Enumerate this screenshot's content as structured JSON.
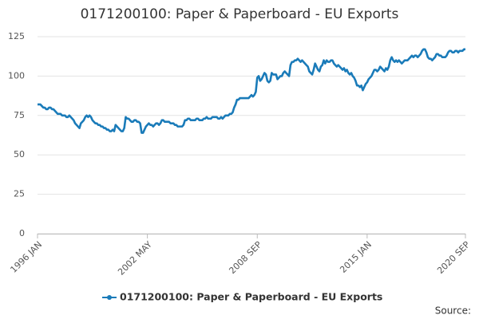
{
  "chart_data": {
    "type": "line",
    "title": "0171200100: Paper & Paperboard - EU Exports",
    "note": "Source:",
    "ylim": [
      0,
      125
    ],
    "yticks": [
      0,
      25,
      50,
      75,
      100,
      125
    ],
    "grid": true,
    "categories": [
      "1996 JAN",
      null,
      null,
      null,
      null,
      null,
      null,
      null,
      null,
      null,
      null,
      null,
      null,
      null,
      null,
      null,
      null,
      null,
      null,
      null,
      null,
      null,
      null,
      null,
      null,
      null,
      null,
      null,
      null,
      null,
      null,
      null,
      null,
      null,
      null,
      null,
      null,
      null,
      null,
      null,
      null,
      null,
      null,
      null,
      null,
      null,
      null,
      null,
      null,
      null,
      null,
      null,
      null,
      null,
      null,
      null,
      null,
      null,
      null,
      null,
      null,
      null,
      null,
      null,
      null,
      null,
      null,
      null,
      null,
      null,
      null,
      null,
      null,
      null,
      null,
      null,
      "2002 MAY",
      null,
      null,
      null,
      null,
      null,
      null,
      null,
      null,
      null,
      null,
      null,
      null,
      null,
      null,
      null,
      null,
      null,
      null,
      null,
      null,
      null,
      null,
      null,
      null,
      null,
      null,
      null,
      null,
      null,
      null,
      null,
      null,
      null,
      null,
      null,
      null,
      null,
      null,
      null,
      null,
      null,
      null,
      null,
      null,
      null,
      null,
      null,
      null,
      null,
      null,
      null,
      null,
      null,
      null,
      null,
      null,
      null,
      null,
      null,
      null,
      null,
      null,
      null,
      null,
      null,
      null,
      null,
      null,
      null,
      null,
      null,
      null,
      null,
      null,
      null,
      "2008 SEP",
      null,
      null,
      null,
      null,
      null,
      null,
      null,
      null,
      null,
      null,
      null,
      null,
      null,
      null,
      null,
      null,
      null,
      null,
      null,
      null,
      null,
      null,
      null,
      null,
      null,
      null,
      null,
      null,
      null,
      null,
      null,
      null,
      null,
      null,
      null,
      null,
      null,
      null,
      null,
      null,
      null,
      null,
      null,
      null,
      null,
      null,
      null,
      null,
      null,
      null,
      null,
      null,
      null,
      null,
      null,
      null,
      null,
      null,
      null,
      null,
      null,
      null,
      null,
      null,
      null,
      null,
      null,
      null,
      null,
      null,
      null,
      null,
      null,
      null,
      null,
      "2015 JAN",
      null,
      null,
      null,
      null,
      null,
      null,
      null,
      null,
      null,
      null,
      null,
      null,
      null,
      null,
      null,
      null,
      null,
      null,
      null,
      null,
      null,
      null,
      null,
      null,
      null,
      null,
      null,
      null,
      null,
      null,
      null,
      null,
      null,
      null,
      null,
      null,
      null,
      null,
      null,
      null,
      null,
      null,
      null,
      null,
      null,
      null,
      null,
      null,
      null,
      null,
      null,
      null,
      null,
      null,
      null,
      null,
      null,
      null,
      null,
      null,
      null,
      null,
      null,
      null,
      null,
      null,
      null,
      "2020 SEP"
    ],
    "series": [
      {
        "name": "0171200100: Paper & Paperboard - EU Exports",
        "color": "#1a7bb9",
        "values": [
          82,
          82,
          82,
          81,
          80,
          80,
          79,
          79,
          80,
          80,
          79,
          79,
          78,
          77,
          76,
          76,
          76,
          75,
          75,
          75,
          74,
          74,
          75,
          74,
          73,
          72,
          70,
          69,
          68,
          67,
          70,
          71,
          72,
          74,
          75,
          74,
          75,
          74,
          72,
          71,
          70,
          70,
          69,
          69,
          68,
          68,
          67,
          67,
          66,
          66,
          65,
          65,
          66,
          65,
          69,
          68,
          67,
          66,
          65,
          65,
          67,
          74,
          73,
          73,
          72,
          71,
          71,
          72,
          72,
          71,
          71,
          70,
          64,
          64,
          66,
          68,
          69,
          70,
          69,
          69,
          68,
          69,
          70,
          70,
          69,
          70,
          72,
          72,
          71,
          71,
          71,
          71,
          70,
          70,
          70,
          69,
          69,
          68,
          68,
          68,
          68,
          69,
          72,
          72,
          73,
          73,
          72,
          72,
          72,
          72,
          73,
          73,
          72,
          72,
          72,
          73,
          73,
          74,
          73,
          73,
          73,
          74,
          74,
          74,
          74,
          73,
          73,
          74,
          73,
          74,
          75,
          75,
          75,
          76,
          76,
          77,
          80,
          82,
          85,
          85,
          86,
          86,
          86,
          86,
          86,
          86,
          86,
          87,
          88,
          87,
          88,
          90,
          99,
          100,
          97,
          98,
          100,
          102,
          101,
          97,
          96,
          97,
          102,
          101,
          101,
          101,
          98,
          99,
          100,
          100,
          102,
          103,
          102,
          101,
          100,
          107,
          109,
          109,
          110,
          110,
          111,
          110,
          109,
          110,
          109,
          108,
          107,
          106,
          103,
          102,
          101,
          104,
          108,
          106,
          104,
          103,
          106,
          107,
          110,
          108,
          110,
          109,
          109,
          110,
          110,
          108,
          107,
          106,
          107,
          106,
          105,
          104,
          105,
          103,
          104,
          102,
          101,
          102,
          100,
          99,
          97,
          94,
          94,
          93,
          94,
          91,
          93,
          95,
          96,
          98,
          99,
          100,
          102,
          104,
          104,
          103,
          104,
          106,
          105,
          104,
          103,
          105,
          104,
          106,
          110,
          112,
          110,
          109,
          110,
          109,
          110,
          109,
          108,
          109,
          110,
          110,
          110,
          111,
          112,
          113,
          112,
          113,
          113,
          112,
          113,
          114,
          116,
          117,
          117,
          115,
          112,
          111,
          111,
          110,
          111,
          112,
          114,
          114,
          113,
          113,
          112,
          112,
          112,
          113,
          115,
          116,
          116,
          115,
          115,
          116,
          116,
          115,
          116,
          116,
          116,
          117,
          117
        ]
      }
    ]
  }
}
